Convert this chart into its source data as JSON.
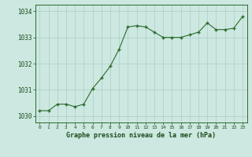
{
  "x": [
    0,
    1,
    2,
    3,
    4,
    5,
    6,
    7,
    8,
    9,
    10,
    11,
    12,
    13,
    14,
    15,
    16,
    17,
    18,
    19,
    20,
    21,
    22,
    23
  ],
  "y": [
    1030.2,
    1030.2,
    1030.45,
    1030.45,
    1030.35,
    1030.45,
    1031.05,
    1031.45,
    1031.9,
    1032.55,
    1033.4,
    1033.45,
    1033.4,
    1033.2,
    1033.0,
    1033.0,
    1033.0,
    1033.1,
    1033.2,
    1033.55,
    1033.3,
    1033.3,
    1033.35,
    1033.8
  ],
  "line_color": "#2d6a2d",
  "marker_color": "#2d6a2d",
  "bg_color": "#cce8e0",
  "grid_color": "#aacfc7",
  "axis_color": "#2d6a2d",
  "tick_color": "#1a4a1a",
  "title": "Graphe pression niveau de la mer (hPa)",
  "ylim": [
    1029.75,
    1034.25
  ],
  "yticks": [
    1030,
    1031,
    1032,
    1033,
    1034
  ],
  "xticks": [
    0,
    1,
    2,
    3,
    4,
    5,
    6,
    7,
    8,
    9,
    10,
    11,
    12,
    13,
    14,
    15,
    16,
    17,
    18,
    19,
    20,
    21,
    22,
    23
  ],
  "figsize": [
    3.2,
    2.0
  ],
  "dpi": 100
}
